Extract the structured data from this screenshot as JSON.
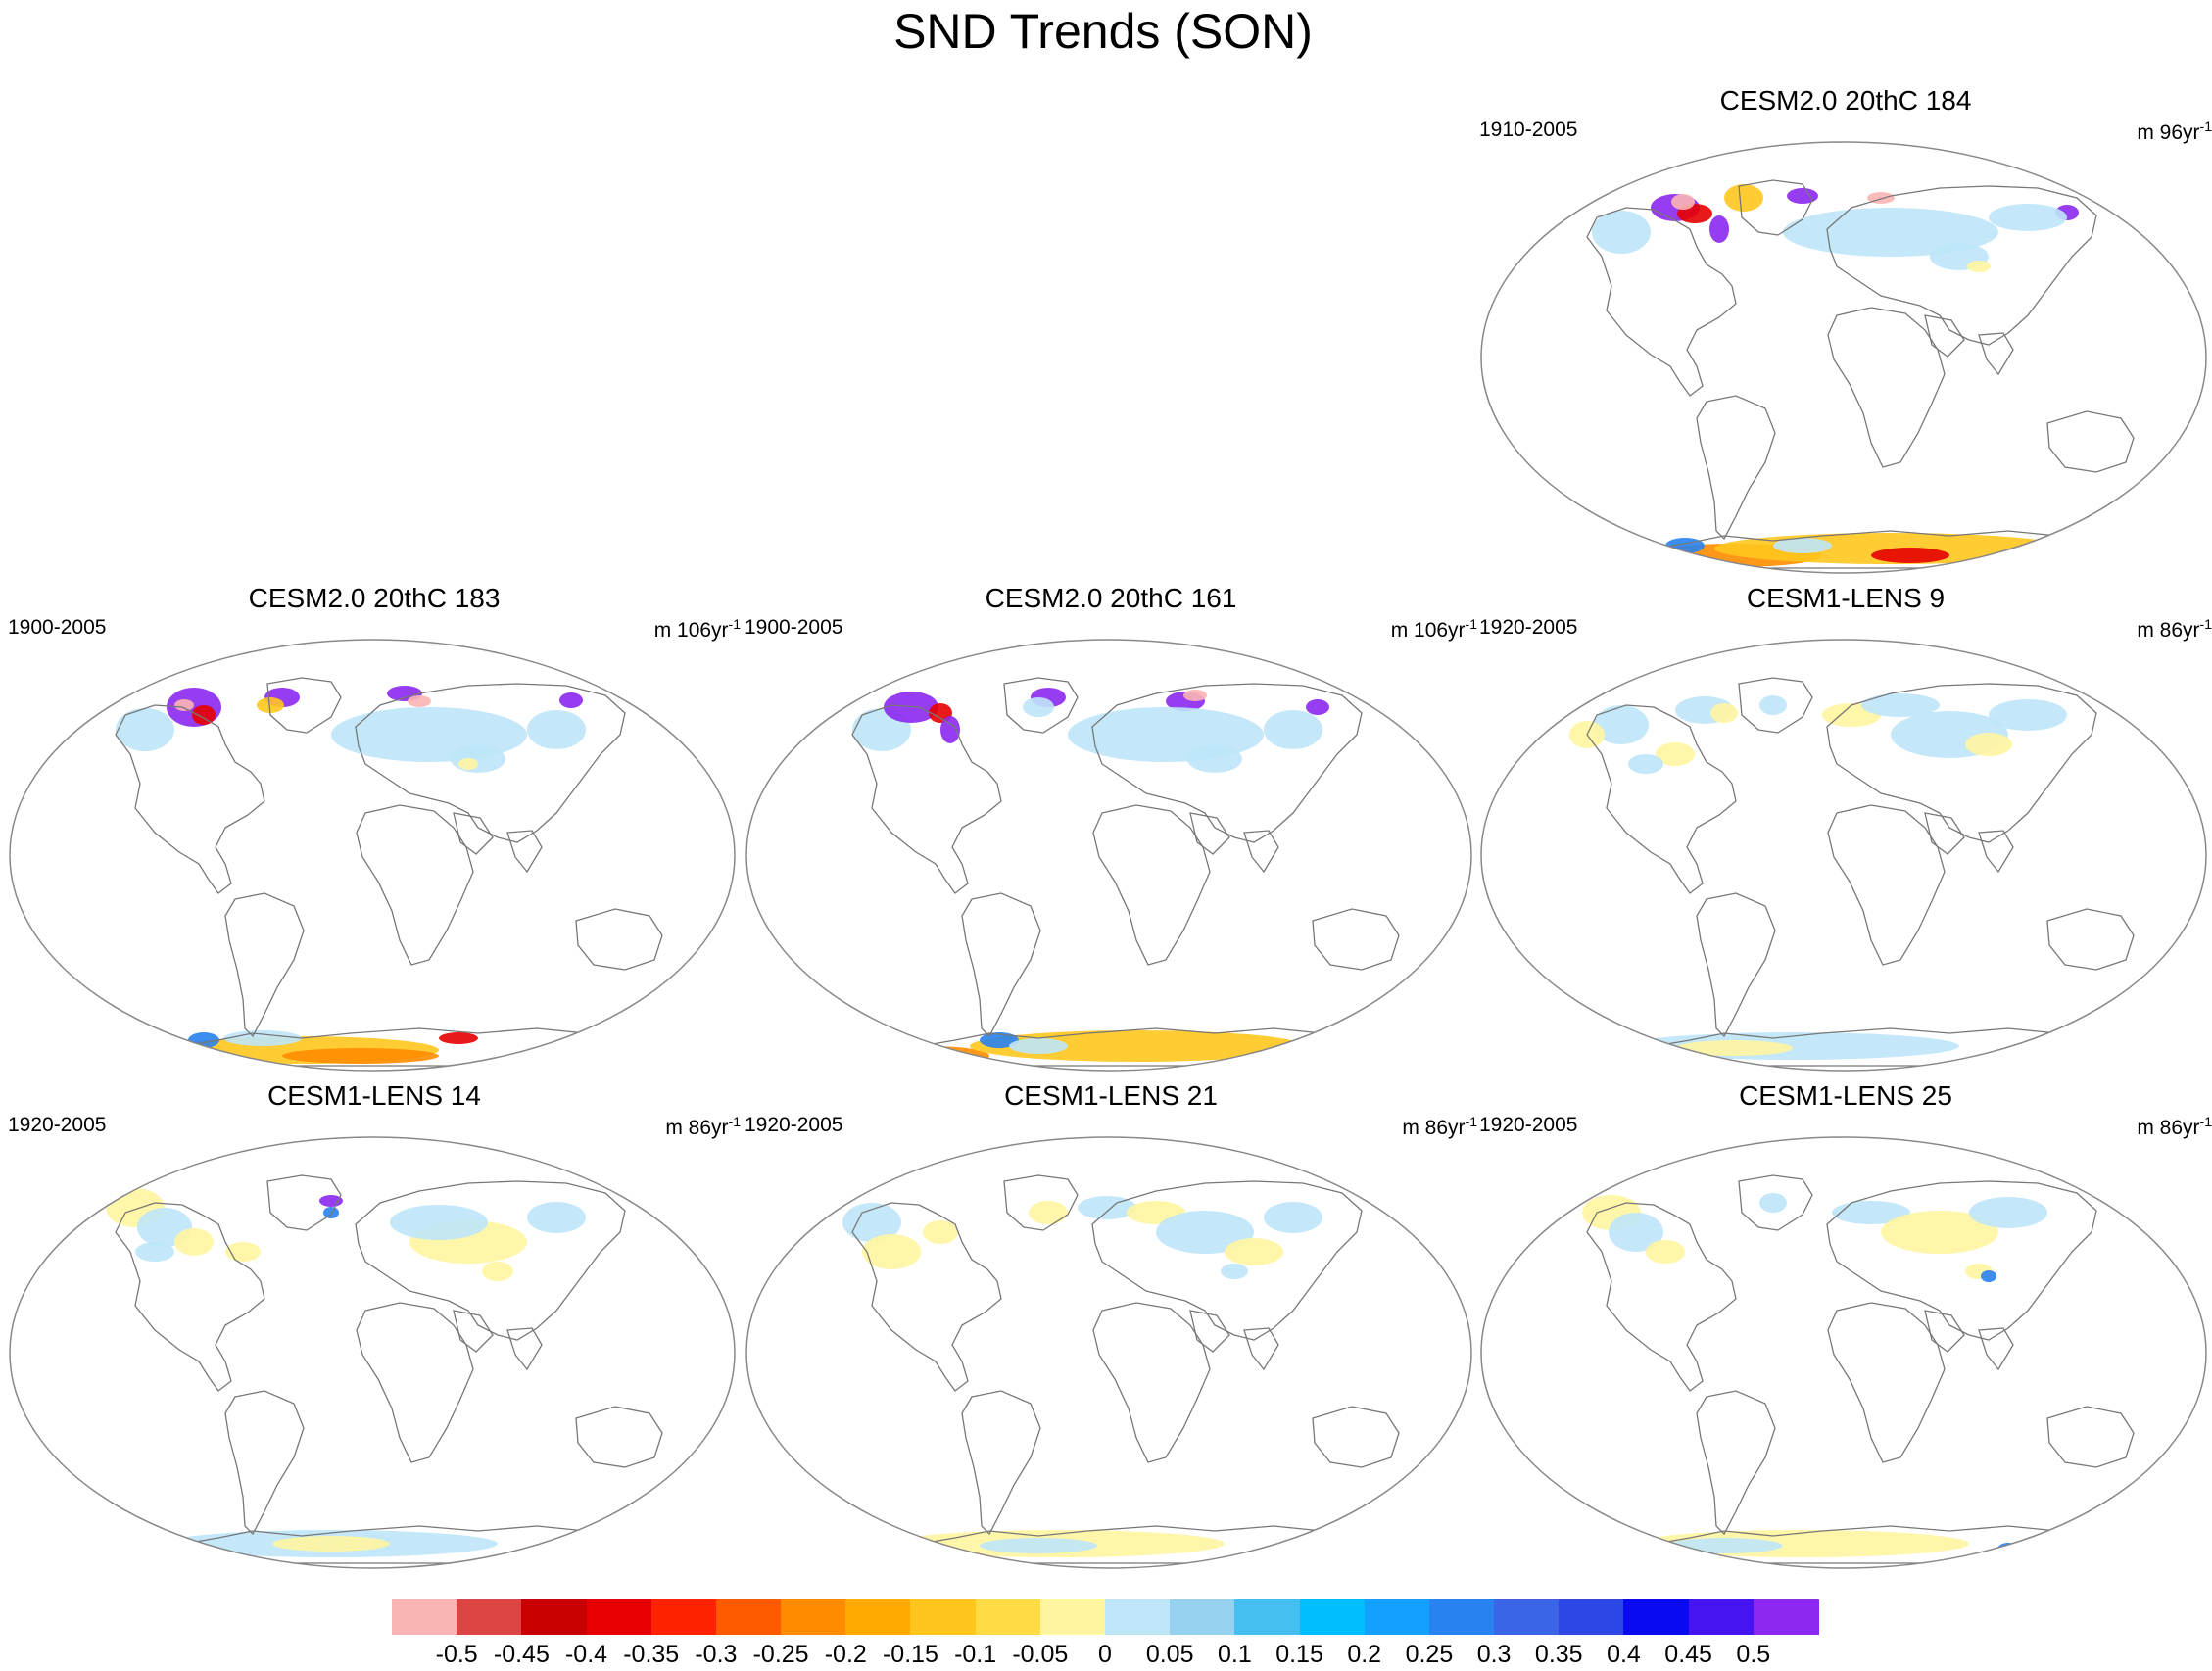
{
  "title": "SND Trends (SON)",
  "panels": [
    {
      "id": "p184",
      "title": "CESM2.0 20thC 184",
      "years": "1910-2005",
      "units": "m 96yr",
      "units_exp": "-1",
      "row": 0,
      "col": 2
    },
    {
      "id": "p183",
      "title": "CESM2.0 20thC 183",
      "years": "1900-2005",
      "units": "m 106yr",
      "units_exp": "-1",
      "row": 1,
      "col": 0
    },
    {
      "id": "p161",
      "title": "CESM2.0 20thC 161",
      "years": "1900-2005",
      "units": "m 106yr",
      "units_exp": "-1",
      "row": 1,
      "col": 1
    },
    {
      "id": "l9",
      "title": "CESM1-LENS 9",
      "years": "1920-2005",
      "units": "m 86yr",
      "units_exp": "-1",
      "row": 1,
      "col": 2
    },
    {
      "id": "l14",
      "title": "CESM1-LENS 14",
      "years": "1920-2005",
      "units": "m 86yr",
      "units_exp": "-1",
      "row": 2,
      "col": 0
    },
    {
      "id": "l21",
      "title": "CESM1-LENS 21",
      "years": "1920-2005",
      "units": "m 86yr",
      "units_exp": "-1",
      "row": 2,
      "col": 1
    },
    {
      "id": "l25",
      "title": "CESM1-LENS 25",
      "years": "1920-2005",
      "units": "m 86yr",
      "units_exp": "-1",
      "row": 2,
      "col": 2
    }
  ],
  "colorbar": {
    "labels": [
      "-0.5",
      "-0.45",
      "-0.4",
      "-0.35",
      "-0.3",
      "-0.25",
      "-0.2",
      "-0.15",
      "-0.1",
      "-0.05",
      "0",
      "0.05",
      "0.1",
      "0.15",
      "0.2",
      "0.25",
      "0.3",
      "0.35",
      "0.4",
      "0.45",
      "0.5"
    ],
    "colors": [
      "#fbb4b4",
      "#dd4444",
      "#c80000",
      "#e60000",
      "#ff2200",
      "#ff5a00",
      "#ff8c00",
      "#ffaa00",
      "#ffc61e",
      "#ffdc46",
      "#fff5a0",
      "#bee6f8",
      "#96d2f0",
      "#46bef0",
      "#00beff",
      "#14a0ff",
      "#2882f0",
      "#3c64e6",
      "#2d46e6",
      "#0a0af0",
      "#4614f0",
      "#8c28f0"
    ]
  },
  "map_colors": {
    "land_outline": "#777777",
    "frame": "#888888",
    "light_blue": "#bee6f8",
    "mid_blue": "#96d2f0",
    "blue": "#46bef0",
    "strong_blue": "#2882f0",
    "yellow": "#fff5a0",
    "gold": "#ffc61e",
    "orange": "#ff8c00",
    "red": "#e60000",
    "purple": "#8c28f0",
    "pink": "#fbb4b4"
  }
}
